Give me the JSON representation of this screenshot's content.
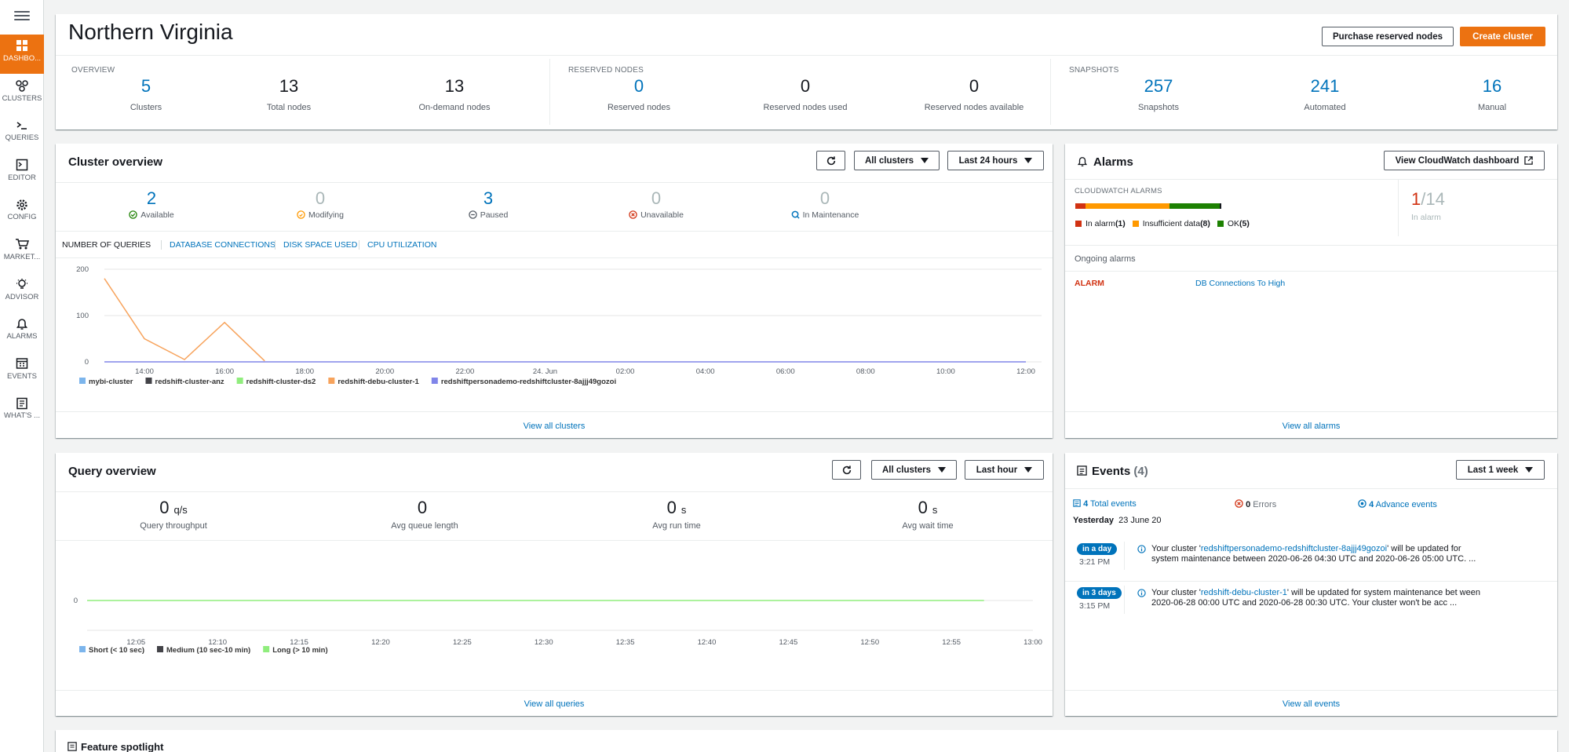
{
  "nav": [
    {
      "label": "DASHBO...",
      "icon": "dashboard-icon"
    },
    {
      "label": "CLUSTERS",
      "icon": "clusters-icon"
    },
    {
      "label": "QUERIES",
      "icon": "terminal-icon"
    },
    {
      "label": "EDITOR",
      "icon": "editor-icon"
    },
    {
      "label": "CONFIG",
      "icon": "gear-icon"
    },
    {
      "label": "MARKET...",
      "icon": "cart-icon"
    },
    {
      "label": "ADVISOR",
      "icon": "lightbulb-icon"
    },
    {
      "label": "ALARMS",
      "icon": "bell-icon"
    },
    {
      "label": "EVENTS",
      "icon": "calendar-icon"
    },
    {
      "label": "WHAT'S ...",
      "icon": "news-icon"
    }
  ],
  "header": {
    "title": "Northern Virginia",
    "purchase_label": "Purchase reserved nodes",
    "create_label": "Create cluster",
    "overview_title": "OVERVIEW",
    "reserved_title": "RESERVED NODES",
    "snapshots_title": "SNAPSHOTS",
    "stats": [
      {
        "value": "5",
        "label": "Clusters"
      },
      {
        "value": "13",
        "label": "Total nodes"
      },
      {
        "value": "13",
        "label": "On-demand nodes"
      },
      {
        "value": "0",
        "label": "Reserved nodes"
      },
      {
        "value": "0",
        "label": "Reserved nodes used"
      },
      {
        "value": "0",
        "label": "Reserved nodes available"
      },
      {
        "value": "257",
        "label": "Snapshots"
      },
      {
        "value": "241",
        "label": "Automated"
      },
      {
        "value": "16",
        "label": "Manual"
      }
    ]
  },
  "cluster_overview": {
    "title": "Cluster overview",
    "filter": "All clusters",
    "range": "Last 24 hours",
    "statuses": [
      {
        "value": "2",
        "label": "Available"
      },
      {
        "value": "0",
        "label": "Modifying"
      },
      {
        "value": "3",
        "label": "Paused"
      },
      {
        "value": "0",
        "label": "Unavailable"
      },
      {
        "value": "0",
        "label": "In Maintenance"
      }
    ],
    "tabs": [
      "NUMBER OF QUERIES",
      "DATABASE CONNECTIONS",
      "DISK SPACE USED",
      "CPU UTILIZATION"
    ],
    "footer": "View all clusters"
  },
  "alarms": {
    "title": "Alarms",
    "cw_button": "View CloudWatch dashboard",
    "cw_label": "CLOUDWATCH ALARMS",
    "bar": {
      "in_alarm": 1,
      "insufficient": 8,
      "ok": 5
    },
    "legend": [
      "In alarm",
      "(1)",
      "Insufficient data",
      "(8)",
      "OK",
      "(5)"
    ],
    "count_alarm": "1",
    "count_total": "/14",
    "count_label": "In alarm",
    "ongoing_label": "Ongoing alarms",
    "row_state": "ALARM",
    "row_name": "DB Connections To High",
    "footer": "View all alarms"
  },
  "query_overview": {
    "title": "Query overview",
    "filter": "All clusters",
    "range": "Last hour",
    "stats": [
      {
        "value": "0",
        "unit": "q/s",
        "label": "Query throughput"
      },
      {
        "value": "0",
        "unit": "",
        "label": "Avg queue length"
      },
      {
        "value": "0",
        "unit": "s",
        "label": "Avg run time"
      },
      {
        "value": "0",
        "unit": "s",
        "label": "Avg wait time"
      }
    ],
    "footer": "View all queries"
  },
  "events": {
    "title": "Events",
    "count": "(4)",
    "range": "Last 1 week",
    "total_n": "4",
    "total_label": "Total events",
    "errors_n": "0",
    "errors_label": "Errors",
    "adv_n": "4",
    "adv_label": "Advance events",
    "day": "Yesterday",
    "date": "23 June 20",
    "items": [
      {
        "badge": "in a day",
        "time": "3:21 PM",
        "pre": "Your cluster '",
        "cluster": "redshiftpersonademo-redshiftcluster-8ajjj49gozoi",
        "post": "' will be updated for system maintenance between 2020-06-26 04:30 UTC and 2020-06-26 05:00 UTC.   ..."
      },
      {
        "badge": "in 3 days",
        "time": "3:15 PM",
        "pre": "Your cluster '",
        "cluster": "redshift-debu-cluster-1",
        "post": "' will be updated for system maintenance bet ween 2020-06-28 00:00 UTC and 2020-06-28 00:30 UTC. Your cluster won't be acc ..."
      }
    ],
    "footer": "View all events"
  },
  "spotlight": {
    "title": "Feature spotlight"
  },
  "colors": {
    "accent": "#ec7211",
    "link": "#0073bb",
    "alarm": "#d13212",
    "insufficient": "#ff9900",
    "ok": "#1d8102"
  },
  "chart_data": [
    {
      "type": "line",
      "title": "",
      "xlabel": "",
      "ylabel": "",
      "yticks": [
        0,
        100,
        200
      ],
      "ylim": [
        0,
        200
      ],
      "x_ticks": [
        "14:00",
        "16:00",
        "18:00",
        "20:00",
        "22:00",
        "24. Jun",
        "02:00",
        "04:00",
        "06:00",
        "08:00",
        "10:00",
        "12:00"
      ],
      "x_hours": [
        14,
        16,
        18,
        20,
        22,
        24,
        26,
        28,
        30,
        32,
        34,
        36
      ],
      "xlim": [
        13,
        36
      ],
      "series": [
        {
          "name": "mybi-cluster",
          "color": "#7cb5ec",
          "points": []
        },
        {
          "name": "redshift-cluster-anz",
          "color": "#434348",
          "points": []
        },
        {
          "name": "redshift-cluster-ds2",
          "color": "#90ed7d",
          "points": []
        },
        {
          "name": "redshift-debu-cluster-1",
          "color": "#f7a35c",
          "points": [
            [
              13,
              180
            ],
            [
              14,
              50
            ],
            [
              15,
              5
            ],
            [
              16,
              85
            ],
            [
              17,
              2
            ]
          ]
        },
        {
          "name": "redshiftpersonademo-redshiftcluster-8ajjj49gozoi",
          "color": "#8085e9",
          "points": [
            [
              13,
              0
            ],
            [
              36,
              0
            ]
          ]
        }
      ]
    },
    {
      "type": "line",
      "title": "",
      "xlabel": "",
      "ylabel": "",
      "yticks": [
        0
      ],
      "ylim": [
        0,
        1
      ],
      "x_ticks": [
        "12:05",
        "12:10",
        "12:15",
        "12:20",
        "12:25",
        "12:30",
        "12:35",
        "12:40",
        "12:45",
        "12:50",
        "12:55",
        "13:00"
      ],
      "x_minutes": [
        5,
        10,
        15,
        20,
        25,
        30,
        35,
        40,
        45,
        50,
        55,
        60
      ],
      "xlim": [
        2,
        60
      ],
      "series": [
        {
          "name": "Short (< 10 sec)",
          "color": "#7cb5ec",
          "points": []
        },
        {
          "name": "Medium (10 sec-10 min)",
          "color": "#434348",
          "points": []
        },
        {
          "name": "Long (> 10 min)",
          "color": "#90ed7d",
          "points": [
            [
              2,
              0
            ],
            [
              57,
              0
            ]
          ]
        }
      ]
    }
  ]
}
